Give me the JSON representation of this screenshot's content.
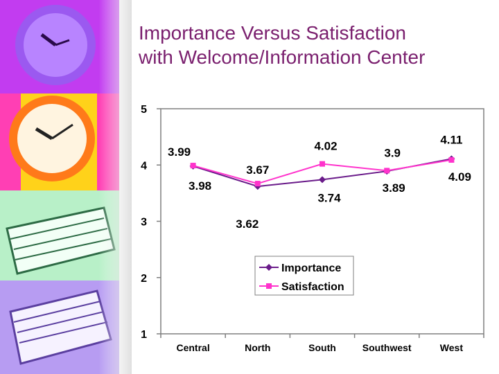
{
  "title_lines": [
    "Importance Versus Satisfaction",
    "with Welcome/Information Center"
  ],
  "colors": {
    "title": "#7a1f6e",
    "importance": "#6a1b8a",
    "satisfaction": "#ff33cc",
    "strip_purple": "#c23cf0",
    "strip_yellow": "#ffd21a",
    "strip_green": "#b8f0c8",
    "strip_lavender": "#b79cf2"
  },
  "decor_icons": [
    "purple-clock-icon",
    "orange-clock-icon",
    "green-papers-icon",
    "lavender-papers-icon"
  ],
  "chart_data": {
    "type": "line",
    "categories": [
      "Central",
      "North",
      "South",
      "Southwest",
      "West"
    ],
    "series": [
      {
        "name": "Importance",
        "values": [
          3.98,
          3.62,
          3.74,
          3.89,
          4.11
        ],
        "color": "#6a1b8a",
        "marker": "diamond"
      },
      {
        "name": "Satisfaction",
        "values": [
          3.99,
          3.67,
          4.02,
          3.9,
          4.09
        ],
        "color": "#ff33cc",
        "marker": "square"
      }
    ],
    "data_labels": {
      "above": [
        "3.99",
        "3.67",
        "4.02",
        "3.9",
        "4.11"
      ],
      "below": [
        "3.98",
        "3.62",
        "3.74",
        "3.89",
        "4.09"
      ]
    },
    "yticks": [
      "5",
      "4",
      "3",
      "2",
      "1"
    ],
    "ylim": [
      1,
      5
    ],
    "grid": false,
    "legend": "center-bottom",
    "title": "",
    "xlabel": "",
    "ylabel": ""
  }
}
